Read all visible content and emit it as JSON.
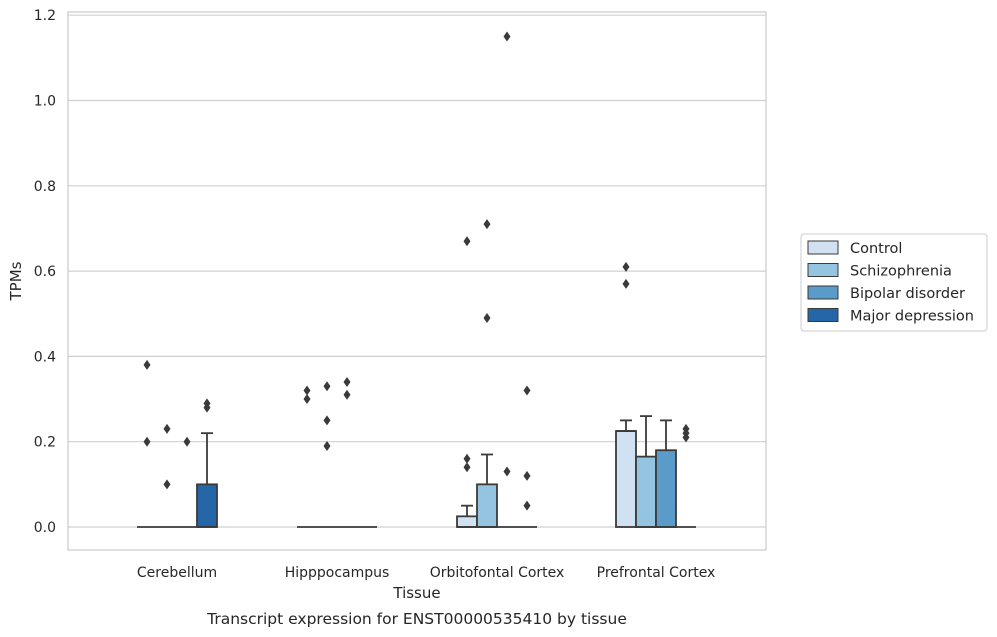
{
  "caption": "Transcript expression for ENST00000535410 by tissue",
  "chart_data": {
    "type": "box",
    "xlabel": "Tissue",
    "ylabel": "TPMs",
    "ylim": [
      -0.055,
      1.21
    ],
    "yticks": [
      "0.0",
      "0.2",
      "0.4",
      "0.6",
      "0.8",
      "1.0",
      "1.2"
    ],
    "grid": "horizontal",
    "legend_position": "right",
    "categories": [
      "Cerebellum",
      "Hipppocampus",
      "Orbitofontal Cortex",
      "Prefrontal Cortex"
    ],
    "series": [
      {
        "name": "Control",
        "color": "#d0e2f1",
        "boxes": [
          {
            "q1": 0,
            "median": 0,
            "q3": 0,
            "whislo": 0,
            "whishi": 0,
            "fliers": [
              0.38,
              0.2
            ]
          },
          {
            "q1": 0,
            "median": 0,
            "q3": 0,
            "whislo": 0,
            "whishi": 0,
            "fliers": [
              0.32,
              0.3
            ]
          },
          {
            "q1": 0,
            "median": 0,
            "q3": 0.025,
            "whislo": 0,
            "whishi": 0.05,
            "fliers": [
              0.67,
              0.16,
              0.14
            ]
          },
          {
            "q1": 0,
            "median": 0.225,
            "q3": 0.225,
            "whislo": 0,
            "whishi": 0.25,
            "fliers": [
              0.61,
              0.57
            ]
          }
        ]
      },
      {
        "name": "Schizophrenia",
        "color": "#94c4df",
        "boxes": [
          {
            "q1": 0,
            "median": 0,
            "q3": 0,
            "whislo": 0,
            "whishi": 0,
            "fliers": [
              0.23,
              0.1
            ]
          },
          {
            "q1": 0,
            "median": 0,
            "q3": 0,
            "whislo": 0,
            "whishi": 0,
            "fliers": [
              0.33,
              0.25,
              0.19
            ]
          },
          {
            "q1": 0,
            "median": 0,
            "q3": 0.1,
            "whislo": 0,
            "whishi": 0.17,
            "fliers": [
              0.71,
              0.49
            ]
          },
          {
            "q1": 0,
            "median": 0,
            "q3": 0.165,
            "whislo": 0,
            "whishi": 0.26,
            "fliers": []
          }
        ]
      },
      {
        "name": "Bipolar disorder",
        "color": "#5b9bc9",
        "boxes": [
          {
            "q1": 0,
            "median": 0,
            "q3": 0,
            "whislo": 0,
            "whishi": 0,
            "fliers": [
              0.2
            ]
          },
          {
            "q1": 0,
            "median": 0,
            "q3": 0,
            "whislo": 0,
            "whishi": 0,
            "fliers": [
              0.34,
              0.31
            ]
          },
          {
            "q1": 0,
            "median": 0,
            "q3": 0,
            "whislo": 0,
            "whishi": 0,
            "fliers": [
              1.15,
              0.13
            ]
          },
          {
            "q1": 0,
            "median": 0,
            "q3": 0.18,
            "whislo": 0,
            "whishi": 0.25,
            "fliers": []
          }
        ]
      },
      {
        "name": "Major depression",
        "color": "#2566a8",
        "boxes": [
          {
            "q1": 0,
            "median": 0,
            "q3": 0.1,
            "whislo": 0,
            "whishi": 0.22,
            "fliers": [
              0.29,
              0.28
            ]
          },
          {
            "q1": 0,
            "median": 0,
            "q3": 0,
            "whislo": 0,
            "whishi": 0,
            "fliers": []
          },
          {
            "q1": 0,
            "median": 0,
            "q3": 0,
            "whislo": 0,
            "whishi": 0,
            "fliers": [
              0.32,
              0.12,
              0.05
            ]
          },
          {
            "q1": 0,
            "median": 0,
            "q3": 0,
            "whislo": 0,
            "whishi": 0,
            "fliers": [
              0.23,
              0.22,
              0.21
            ]
          }
        ]
      }
    ]
  }
}
